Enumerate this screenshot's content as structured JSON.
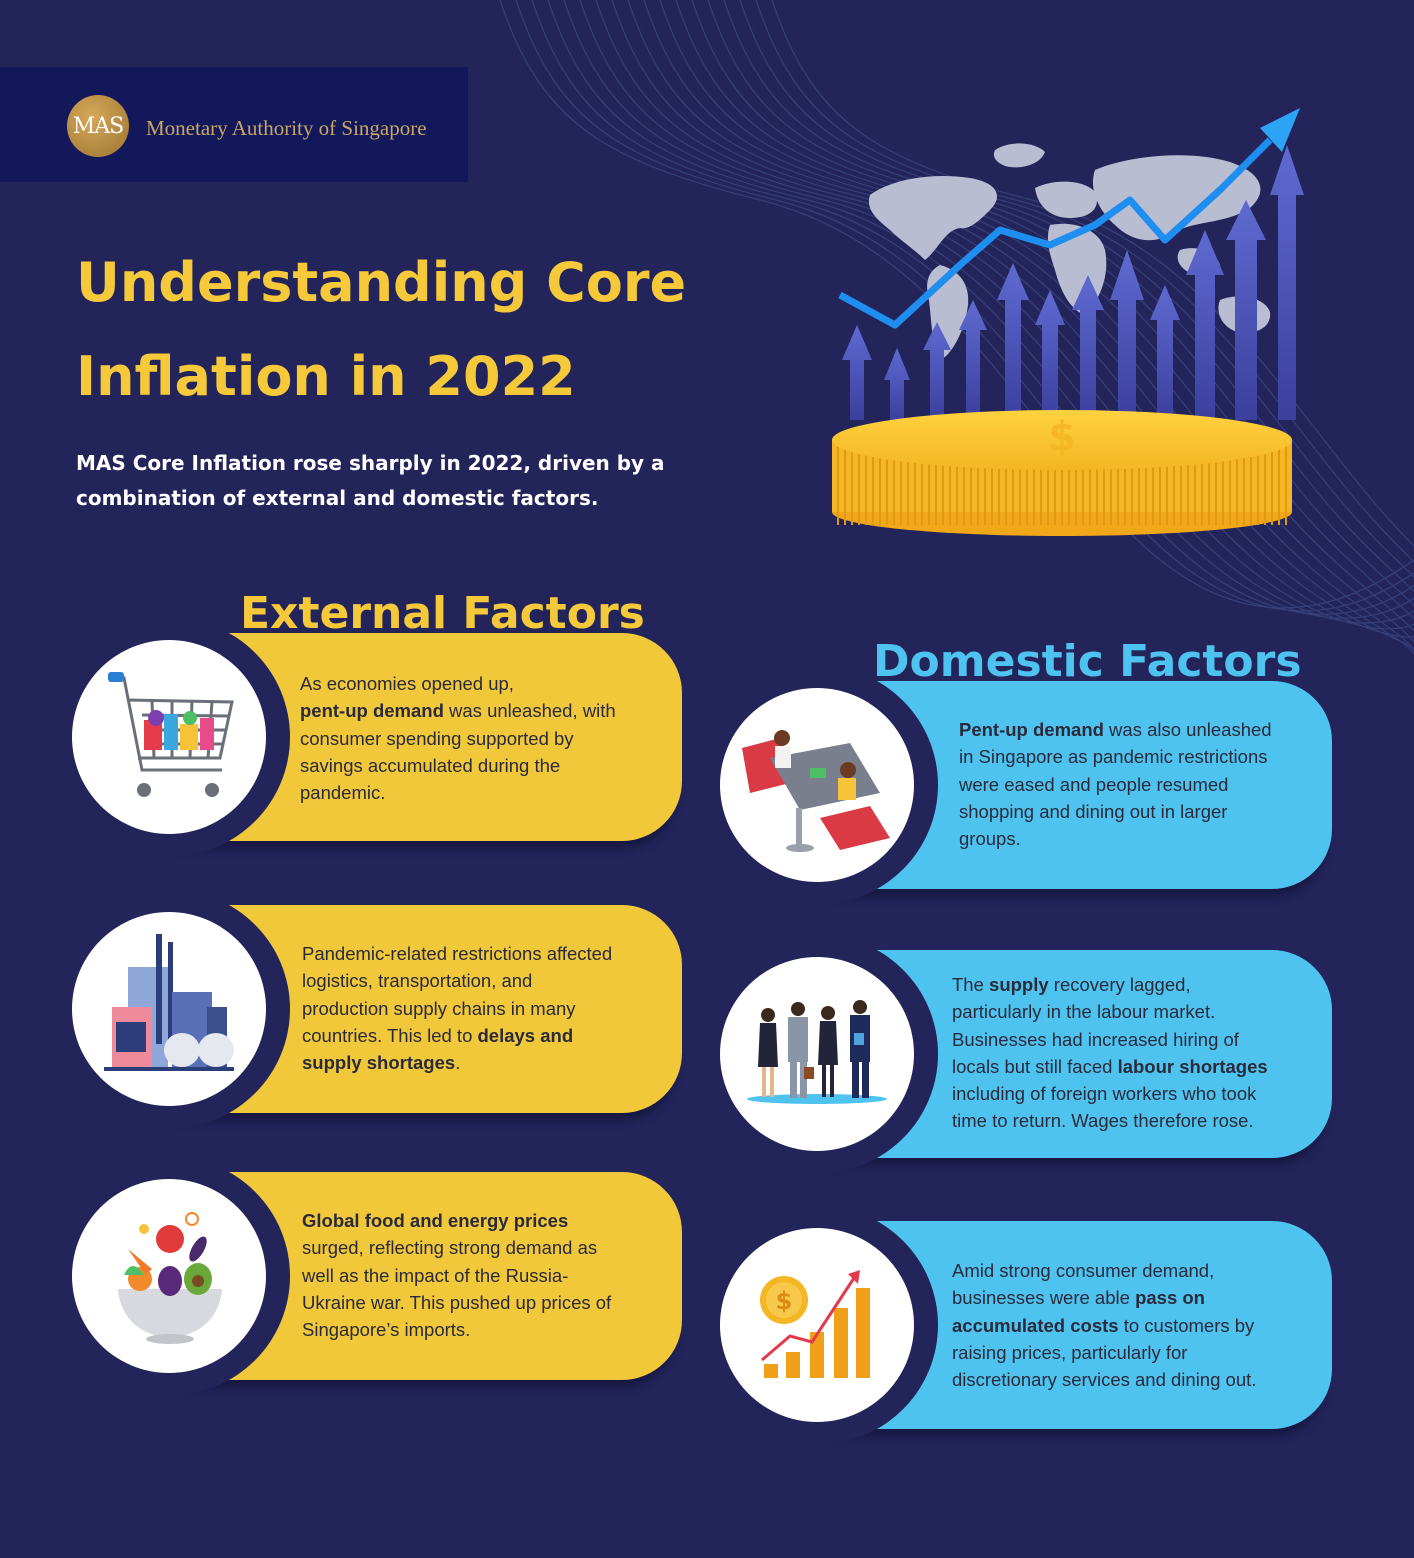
{
  "header": {
    "logo_abbrev": "MAS",
    "logo_name": "Monetary Authority of Singapore"
  },
  "title": {
    "line1": "Understanding Core",
    "line2": "Inflation in 2022"
  },
  "subtitle": {
    "line1": "MAS Core Inflation rose sharply in 2022, driven by a",
    "line2": "combination of external and domestic factors."
  },
  "external": {
    "heading": "External Factors",
    "cards": [
      {
        "icon": "shopping-cart-icon",
        "lines": [
          [
            {
              "t": "As economies opened up,"
            }
          ],
          [
            {
              "t": "pent-up demand",
              "b": true
            },
            {
              "t": " was unleashed, with"
            }
          ],
          [
            {
              "t": "consumer spending supported by"
            }
          ],
          [
            {
              "t": "savings accumulated during the"
            }
          ],
          [
            {
              "t": "pandemic."
            }
          ]
        ]
      },
      {
        "icon": "factory-icon",
        "lines": [
          [
            {
              "t": "Pandemic-related restrictions affected"
            }
          ],
          [
            {
              "t": "logistics, transportation, and"
            }
          ],
          [
            {
              "t": "production supply chains in many"
            }
          ],
          [
            {
              "t": "countries. This led to "
            },
            {
              "t": "delays and",
              "b": true
            }
          ],
          [
            {
              "t": "supply shortages",
              "b": true
            },
            {
              "t": "."
            }
          ]
        ]
      },
      {
        "icon": "food-bowl-icon",
        "lines": [
          [
            {
              "t": "Global food and energy prices",
              "b": true
            }
          ],
          [
            {
              "t": "surged, reflecting strong demand as"
            }
          ],
          [
            {
              "t": "well as the impact of the Russia-"
            }
          ],
          [
            {
              "t": "Ukraine war. This pushed up prices of"
            }
          ],
          [
            {
              "t": "Singapore’s imports."
            }
          ]
        ]
      }
    ]
  },
  "domestic": {
    "heading": "Domestic Factors",
    "cards": [
      {
        "icon": "dining-people-icon",
        "lines": [
          [
            {
              "t": "Pent-up demand",
              "b": true
            },
            {
              "t": " was also unleashed"
            }
          ],
          [
            {
              "t": "in Singapore as pandemic restrictions"
            }
          ],
          [
            {
              "t": "were eased and people resumed"
            }
          ],
          [
            {
              "t": "shopping and dining out in larger"
            }
          ],
          [
            {
              "t": "groups."
            }
          ]
        ]
      },
      {
        "icon": "business-team-icon",
        "lines": [
          [
            {
              "t": "The "
            },
            {
              "t": "supply",
              "b": true
            },
            {
              "t": " recovery lagged,"
            }
          ],
          [
            {
              "t": "particularly in the labour market."
            }
          ],
          [
            {
              "t": "Businesses had increased hiring of"
            }
          ],
          [
            {
              "t": "locals but still faced "
            },
            {
              "t": "labour shortages",
              "b": true
            }
          ],
          [
            {
              "t": "including of foreign workers who took"
            }
          ],
          [
            {
              "t": "time to return. Wages therefore rose."
            }
          ]
        ]
      },
      {
        "icon": "rising-costs-chart-icon",
        "lines": [
          [
            {
              "t": "Amid strong consumer demand,"
            }
          ],
          [
            {
              "t": "businesses were able "
            },
            {
              "t": "pass on",
              "b": true
            }
          ],
          [
            {
              "t": "accumulated costs",
              "b": true
            },
            {
              "t": " to customers by"
            }
          ],
          [
            {
              "t": "raising prices, particularly for"
            }
          ],
          [
            {
              "t": "discretionary services and dining out."
            }
          ]
        ]
      }
    ]
  },
  "colors": {
    "background": "#23245a",
    "title_yellow": "#f5c93a",
    "external_card": "#f0c83a",
    "domestic_card": "#4fc3ef",
    "logo_bar": "#13185a",
    "logo_gold": "#c9a665"
  }
}
